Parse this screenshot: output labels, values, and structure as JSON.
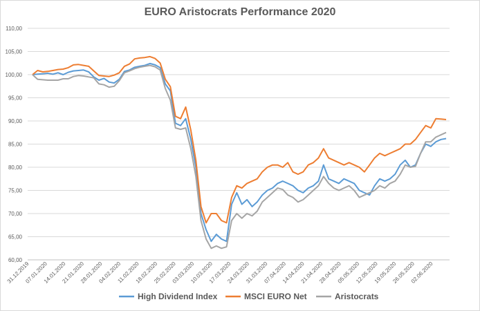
{
  "chart_data": {
    "type": "line",
    "title": "EURO Aristocrats Performance 2020",
    "xlabel": "",
    "ylabel": "",
    "ylim": [
      60,
      110
    ],
    "yticks": [
      "60,00",
      "65,00",
      "70,00",
      "75,00",
      "80,00",
      "85,00",
      "90,00",
      "95,00",
      "100,00",
      "105,00",
      "110,00"
    ],
    "xticks": [
      "31.12.2019",
      "07.01.2020",
      "14.01.2020",
      "21.01.2020",
      "28.01.2020",
      "04.02.2020",
      "11.02.2020",
      "18.02.2020",
      "25.02.2020",
      "03.03.2020",
      "10.03.2020",
      "17.03.2020",
      "24.03.2020",
      "31.03.2020",
      "07.04.2020",
      "14.04.2020",
      "21.04.2020",
      "28.04.2020",
      "05.05.2020",
      "12.05.2020",
      "19.05.2020",
      "26.05.2020",
      "02.06.2020"
    ],
    "grid": true,
    "legend_position": "bottom",
    "series": [
      {
        "name": "High Dividend Index",
        "color": "#5b9bd5",
        "values": [
          100.0,
          100.1,
          100.2,
          100.3,
          100.1,
          100.4,
          100.0,
          100.5,
          100.8,
          100.9,
          101.0,
          100.6,
          99.5,
          98.8,
          99.2,
          98.4,
          98.2,
          99.0,
          100.7,
          101.0,
          101.6,
          101.8,
          102.0,
          102.4,
          102.1,
          101.5,
          98.0,
          96.5,
          89.5,
          89.0,
          90.5,
          86.0,
          80.0,
          70.0,
          66.5,
          64.0,
          65.5,
          64.5,
          64.0,
          72.0,
          74.5,
          72.0,
          73.0,
          71.5,
          72.5,
          74.0,
          75.0,
          75.5,
          76.5,
          77.0,
          76.5,
          76.0,
          75.0,
          74.5,
          75.5,
          76.0,
          77.0,
          80.5,
          77.5,
          77.0,
          76.5,
          77.5,
          77.0,
          76.5,
          75.0,
          74.5,
          74.0,
          76.0,
          77.5,
          77.0,
          77.5,
          78.5,
          80.5,
          81.5,
          80.0,
          80.5,
          83.0,
          85.0,
          84.5,
          85.5,
          86.0,
          86.2
        ]
      },
      {
        "name": "MSCI EURO Net",
        "color": "#ed7d31",
        "values": [
          100.0,
          100.9,
          100.6,
          100.7,
          100.9,
          101.1,
          101.2,
          101.5,
          102.1,
          102.2,
          102.0,
          101.8,
          100.8,
          99.8,
          99.7,
          99.6,
          99.9,
          100.4,
          101.8,
          102.3,
          103.4,
          103.6,
          103.7,
          103.9,
          103.5,
          102.5,
          99.0,
          97.4,
          91.0,
          90.5,
          93.0,
          88.0,
          81.5,
          71.5,
          68.0,
          70.0,
          70.0,
          68.5,
          68.0,
          73.5,
          76.0,
          75.5,
          76.5,
          77.0,
          77.5,
          79.0,
          80.0,
          80.5,
          80.5,
          80.0,
          81.0,
          79.0,
          78.5,
          79.0,
          80.5,
          81.0,
          82.0,
          84.0,
          82.0,
          81.5,
          81.0,
          80.5,
          81.0,
          80.5,
          80.0,
          79.0,
          80.5,
          82.0,
          83.0,
          82.5,
          83.0,
          83.5,
          84.0,
          85.0,
          85.0,
          86.0,
          87.5,
          89.0,
          88.5,
          90.5,
          90.4,
          90.3
        ]
      },
      {
        "name": "Aristocrats",
        "color": "#a5a5a5",
        "values": [
          100.0,
          99.0,
          98.9,
          98.8,
          98.8,
          98.8,
          99.1,
          99.1,
          99.6,
          99.8,
          99.7,
          99.5,
          99.3,
          98.0,
          97.8,
          97.3,
          97.5,
          98.7,
          100.4,
          100.8,
          101.3,
          101.6,
          101.8,
          102.0,
          101.7,
          101.0,
          97.0,
          94.5,
          88.5,
          88.2,
          88.5,
          84.0,
          78.0,
          68.5,
          64.5,
          62.5,
          63.0,
          62.5,
          62.8,
          68.5,
          70.0,
          69.0,
          70.0,
          69.5,
          70.5,
          72.5,
          73.5,
          74.5,
          75.5,
          75.2,
          74.0,
          73.5,
          72.5,
          73.0,
          74.0,
          75.0,
          76.0,
          78.0,
          76.5,
          75.5,
          75.0,
          75.5,
          76.0,
          75.0,
          73.5,
          74.0,
          74.5,
          75.0,
          76.0,
          75.5,
          76.5,
          77.0,
          78.5,
          80.5,
          80.0,
          80.2,
          83.0,
          85.5,
          85.5,
          86.5,
          87.0,
          87.5
        ]
      }
    ]
  }
}
